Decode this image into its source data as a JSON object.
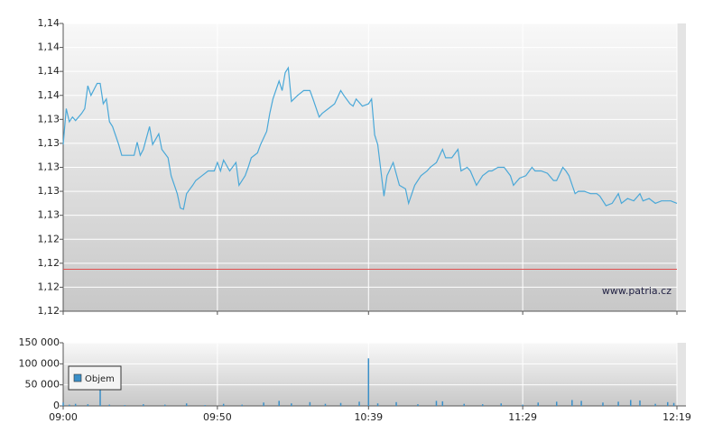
{
  "chart_data": [
    {
      "type": "line",
      "xlim": [
        "09:00",
        "12:19"
      ],
      "xticks": [
        "09:00",
        "09:50",
        "10:39",
        "11:29",
        "12:19"
      ],
      "ylim": [
        1.1175,
        1.1415
      ],
      "yticks": [
        {
          "value": 1.1175,
          "label": "1,12"
        },
        {
          "value": 1.1195,
          "label": "1,12"
        },
        {
          "value": 1.1215,
          "label": "1,12"
        },
        {
          "value": 1.1235,
          "label": "1,12"
        },
        {
          "value": 1.1255,
          "label": "1,13"
        },
        {
          "value": 1.1275,
          "label": "1,13"
        },
        {
          "value": 1.1295,
          "label": "1,13"
        },
        {
          "value": 1.1315,
          "label": "1,13"
        },
        {
          "value": 1.1335,
          "label": "1,13"
        },
        {
          "value": 1.1355,
          "label": "1,14"
        },
        {
          "value": 1.1375,
          "label": "1,14"
        },
        {
          "value": 1.1395,
          "label": "1,14"
        },
        {
          "value": 1.1415,
          "label": "1,14"
        }
      ],
      "grid": true,
      "reference_line": {
        "value": 1.121,
        "color": "#e05050"
      },
      "watermark": "www.patria.cz",
      "series": [
        {
          "color": "#4aa8d8",
          "x": [
            "09:00",
            "09:01",
            "09:02",
            "09:03",
            "09:04",
            "09:06",
            "09:07",
            "09:08",
            "09:09",
            "09:11",
            "09:12",
            "09:13",
            "09:14",
            "09:15",
            "09:16",
            "09:18",
            "09:19",
            "09:21",
            "09:23",
            "09:24",
            "09:25",
            "09:26",
            "09:28",
            "09:29",
            "09:31",
            "09:32",
            "09:34",
            "09:35",
            "09:37",
            "09:38",
            "09:39",
            "09:40",
            "09:42",
            "09:43",
            "09:45",
            "09:47",
            "09:49",
            "09:50",
            "09:51",
            "09:52",
            "09:54",
            "09:56",
            "09:57",
            "09:59",
            "10:00",
            "10:01",
            "10:03",
            "10:04",
            "10:06",
            "10:07",
            "10:08",
            "10:10",
            "10:11",
            "10:12",
            "10:13",
            "10:14",
            "10:16",
            "10:18",
            "10:20",
            "10:21",
            "10:23",
            "10:24",
            "10:26",
            "10:28",
            "10:30",
            "10:31",
            "10:33",
            "10:34",
            "10:35",
            "10:37",
            "10:39",
            "10:40",
            "10:41",
            "10:42",
            "10:44",
            "10:45",
            "10:47",
            "10:49",
            "10:51",
            "10:52",
            "10:54",
            "10:56",
            "10:58",
            "10:59",
            "11:01",
            "11:03",
            "11:04",
            "11:06",
            "11:08",
            "11:09",
            "11:11",
            "11:12",
            "11:14",
            "11:16",
            "11:18",
            "11:19",
            "11:21",
            "11:23",
            "11:25",
            "11:26",
            "11:28",
            "11:30",
            "11:32",
            "11:33",
            "11:35",
            "11:37",
            "11:39",
            "11:40",
            "11:42",
            "11:43",
            "11:44",
            "11:46",
            "11:47",
            "11:49",
            "11:51",
            "11:53",
            "11:54",
            "11:56",
            "11:58",
            "12:00",
            "12:01",
            "12:03",
            "12:05",
            "12:07",
            "12:08",
            "12:10",
            "12:12",
            "12:14",
            "12:15",
            "12:17",
            "12:19"
          ],
          "values": [
            1.1314,
            1.1344,
            1.1333,
            1.1337,
            1.1334,
            1.134,
            1.1344,
            1.1363,
            1.1355,
            1.1365,
            1.1365,
            1.1348,
            1.1352,
            1.1333,
            1.1329,
            1.1314,
            1.1305,
            1.1305,
            1.1305,
            1.1316,
            1.1305,
            1.131,
            1.1329,
            1.1314,
            1.1323,
            1.131,
            1.1303,
            1.1288,
            1.1273,
            1.1261,
            1.126,
            1.1273,
            1.128,
            1.1284,
            1.1288,
            1.1292,
            1.1292,
            1.1299,
            1.1292,
            1.1301,
            1.1292,
            1.1299,
            1.128,
            1.1288,
            1.1295,
            1.1303,
            1.1307,
            1.1314,
            1.1325,
            1.134,
            1.1352,
            1.1367,
            1.1359,
            1.1374,
            1.1378,
            1.135,
            1.1355,
            1.1359,
            1.1359,
            1.1352,
            1.1337,
            1.134,
            1.1344,
            1.1348,
            1.1359,
            1.1355,
            1.1348,
            1.1346,
            1.1352,
            1.1346,
            1.1348,
            1.1352,
            1.1322,
            1.1314,
            1.1271,
            1.1288,
            1.1299,
            1.128,
            1.1277,
            1.1265,
            1.128,
            1.1288,
            1.1292,
            1.1295,
            1.1299,
            1.131,
            1.1303,
            1.1303,
            1.131,
            1.1292,
            1.1295,
            1.1292,
            1.128,
            1.1288,
            1.1292,
            1.1292,
            1.1295,
            1.1295,
            1.1288,
            1.128,
            1.1286,
            1.1288,
            1.1295,
            1.1292,
            1.1292,
            1.129,
            1.1284,
            1.1284,
            1.1295,
            1.1292,
            1.1288,
            1.1273,
            1.1275,
            1.1275,
            1.1273,
            1.1273,
            1.1271,
            1.1263,
            1.1265,
            1.1273,
            1.1265,
            1.1269,
            1.1267,
            1.1273,
            1.1267,
            1.1269,
            1.1265,
            1.1267,
            1.1267,
            1.1267,
            1.1265
          ]
        }
      ]
    },
    {
      "type": "bar",
      "xlim": [
        "09:00",
        "12:19"
      ],
      "xticks": [
        "09:00",
        "09:50",
        "10:39",
        "11:29",
        "12:19"
      ],
      "ylim": [
        0,
        150000
      ],
      "yticks": [
        0,
        {
          "value": 50000,
          "label": "50 000"
        },
        {
          "value": 100000,
          "label": "100 000"
        },
        {
          "value": 150000,
          "label": "150 000"
        }
      ],
      "grid": true,
      "legend": "upper left",
      "series": [
        {
          "name": "Objem",
          "color": "#3a8fc8",
          "x": [
            "09:00",
            "09:02",
            "09:04",
            "09:08",
            "09:12",
            "09:15",
            "09:20",
            "09:26",
            "09:33",
            "09:40",
            "09:46",
            "09:52",
            "09:58",
            "10:05",
            "10:10",
            "10:14",
            "10:20",
            "10:25",
            "10:30",
            "10:36",
            "10:39",
            "10:42",
            "10:48",
            "10:55",
            "11:01",
            "11:03",
            "11:10",
            "11:16",
            "11:22",
            "11:29",
            "11:34",
            "11:40",
            "11:45",
            "11:48",
            "11:55",
            "12:00",
            "12:04",
            "12:07",
            "12:12",
            "12:16",
            "12:18"
          ],
          "values": [
            8000,
            3000,
            5000,
            4000,
            65000,
            3000,
            2000,
            4000,
            3000,
            6000,
            2000,
            5000,
            3000,
            8000,
            12000,
            6000,
            9000,
            5000,
            7000,
            10000,
            113000,
            6000,
            9000,
            4000,
            12000,
            11000,
            5000,
            4000,
            6000,
            3000,
            8000,
            10000,
            14000,
            12000,
            8000,
            10000,
            14000,
            13000,
            5000,
            9000,
            7000
          ]
        }
      ]
    }
  ]
}
